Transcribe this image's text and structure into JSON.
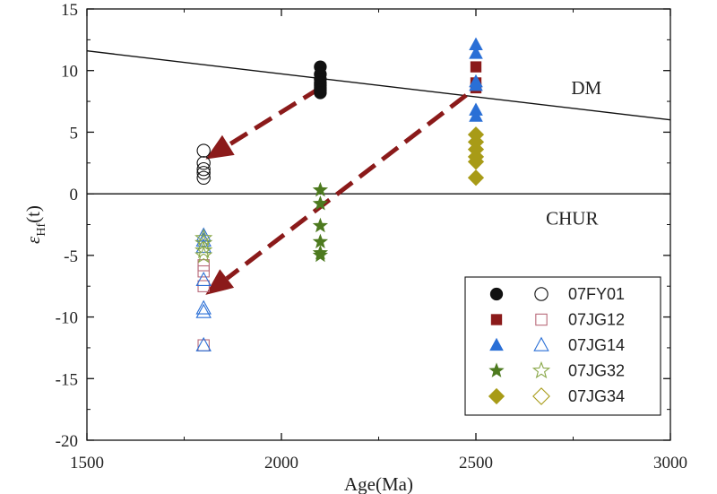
{
  "chart_data": {
    "type": "scatter",
    "title": "",
    "xlabel": "Age(Ma)",
    "ylabel_main": "ε",
    "ylabel_sub": "Hf",
    "ylabel_tail": "(t)",
    "xlim": [
      1500,
      3000
    ],
    "ylim": [
      -20,
      15
    ],
    "xticks": [
      1500,
      2000,
      2500,
      3000
    ],
    "yticks": [
      15,
      10,
      5,
      0,
      -5,
      -10,
      -15,
      -20
    ],
    "grid": false,
    "legend_position": "bottom-right",
    "reference_lines": [
      {
        "name": "DM",
        "label": "DM",
        "points": [
          [
            1500,
            11.6
          ],
          [
            3000,
            6.0
          ]
        ]
      },
      {
        "name": "CHUR",
        "label": "CHUR",
        "points": [
          [
            1500,
            0
          ],
          [
            3000,
            0
          ]
        ]
      }
    ],
    "arrows": [
      {
        "name": "arrow-upper",
        "from": [
          2100,
          8.6
        ],
        "to": [
          1805,
          2.8
        ],
        "color": "#8b1a1a"
      },
      {
        "name": "arrow-lower",
        "from": [
          2475,
          8.0
        ],
        "to": [
          1805,
          -8.2
        ],
        "color": "#8b1a1a"
      }
    ],
    "series": [
      {
        "name": "07FY01",
        "marker": "circle",
        "color": "#111111",
        "filled": {
          "x": [
            2100,
            2100,
            2100,
            2100,
            2100,
            2100,
            2100,
            2100
          ],
          "y": [
            10.3,
            9.7,
            9.3,
            9.0,
            8.8,
            8.6,
            8.4,
            8.2
          ]
        },
        "open": {
          "x": [
            1800,
            1800,
            1800,
            1800,
            1800
          ],
          "y": [
            3.5,
            2.5,
            2.0,
            1.7,
            1.3
          ]
        }
      },
      {
        "name": "07JG12",
        "marker": "square",
        "color": "#8b1a1a",
        "open_color": "#b86a7a",
        "filled": {
          "x": [
            2500,
            2500,
            2500
          ],
          "y": [
            10.3,
            9.0,
            8.6
          ]
        },
        "open": {
          "x": [
            1800,
            1800,
            1800,
            1800
          ],
          "y": [
            -5.8,
            -6.3,
            -7.5,
            -12.3
          ]
        }
      },
      {
        "name": "07JG14",
        "marker": "triangle",
        "color": "#2a6fd6",
        "filled": {
          "x": [
            2500,
            2500,
            2500,
            2500,
            2500,
            2500
          ],
          "y": [
            12.1,
            11.4,
            9.1,
            8.8,
            6.8,
            6.3
          ]
        },
        "open": {
          "x": [
            1800,
            1800,
            1800,
            1800,
            1800,
            1800,
            1800
          ],
          "y": [
            -3.4,
            -3.8,
            -4.3,
            -7.0,
            -9.3,
            -9.6,
            -12.3
          ]
        }
      },
      {
        "name": "07JG32",
        "marker": "star",
        "color": "#4d7a1f",
        "open_color": "#8aa84a",
        "filled": {
          "x": [
            2100,
            2100,
            2100,
            2100,
            2100,
            2100
          ],
          "y": [
            0.3,
            -0.8,
            -2.6,
            -3.9,
            -4.8,
            -5.0
          ]
        },
        "open": {
          "x": [
            1800,
            1800,
            1800,
            1800
          ],
          "y": [
            -3.6,
            -4.0,
            -4.6,
            -5.0
          ]
        }
      },
      {
        "name": "07JG34",
        "marker": "diamond",
        "color": "#a89b17",
        "filled": {
          "x": [
            2500,
            2500,
            2500,
            2500,
            2500,
            2500
          ],
          "y": [
            4.8,
            4.2,
            3.6,
            3.0,
            2.6,
            1.3
          ]
        },
        "open": {
          "x": [],
          "y": []
        }
      }
    ]
  }
}
